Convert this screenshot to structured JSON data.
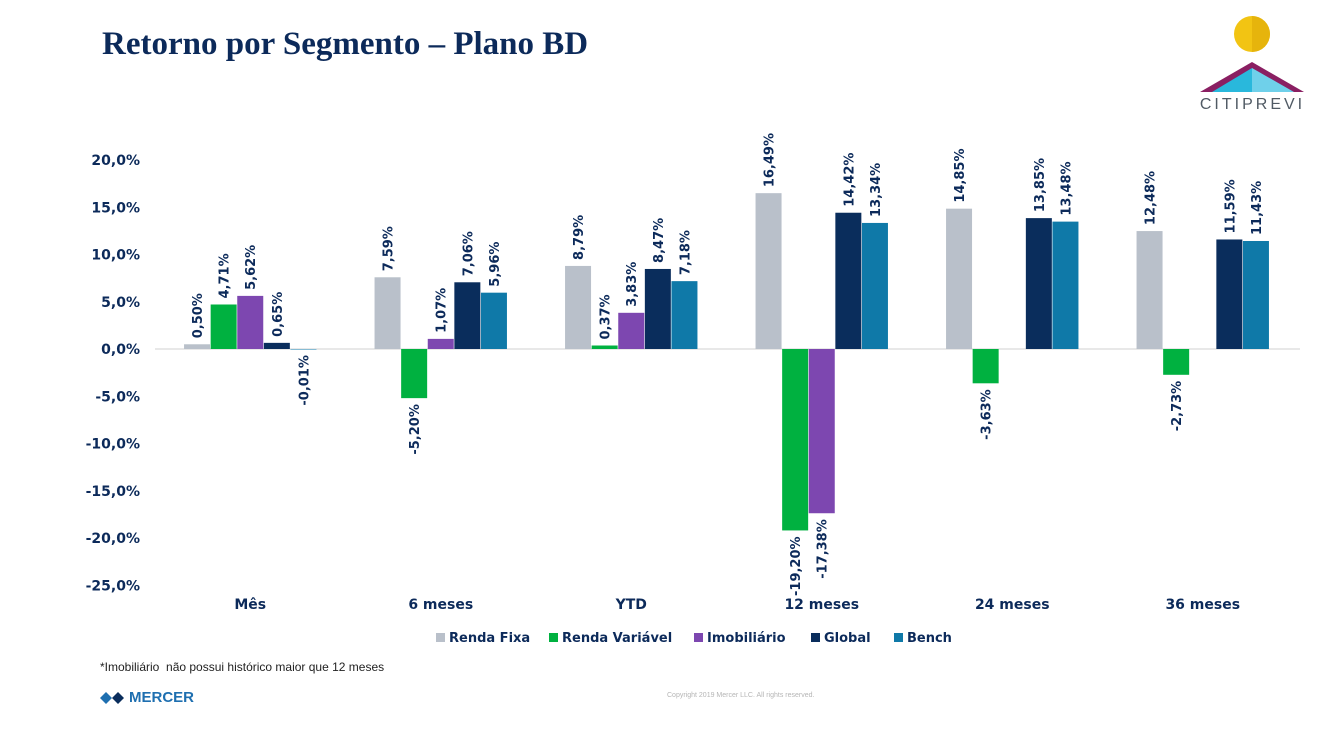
{
  "title": "Retorno por Segmento – Plano BD",
  "logo": {
    "text": "CITIPREVI"
  },
  "footnote": "*Imobiliário  não possui histórico maior que 12 meses",
  "brand": {
    "name": "MERCER"
  },
  "copyright": "Copyright 2019 Mercer LLC. All rights reserved.",
  "chart_data": {
    "type": "bar",
    "categories": [
      "Mês",
      "6 meses",
      "YTD",
      "12 meses",
      "24 meses",
      "36 meses"
    ],
    "series": [
      {
        "name": "Renda Fixa",
        "color": "#b9c0ca",
        "values": [
          0.5,
          7.59,
          8.79,
          16.49,
          14.85,
          12.48
        ],
        "labels": [
          "0,50%",
          "7,59%",
          "8,79%",
          "16,49%",
          "14,85%",
          "12,48%"
        ]
      },
      {
        "name": "Renda Variável",
        "color": "#00b140",
        "values": [
          4.71,
          -5.2,
          0.37,
          -19.2,
          -3.63,
          -2.73
        ],
        "labels": [
          "4,71%",
          "-5,20%",
          "0,37%",
          "-19,20%",
          "-3,63%",
          "-2,73%"
        ]
      },
      {
        "name": "Imobiliário",
        "color": "#7d47b0",
        "values": [
          5.62,
          1.07,
          3.83,
          -17.38,
          null,
          null
        ],
        "labels": [
          "5,62%",
          "1,07%",
          "3,83%",
          "-17,38%",
          "",
          ""
        ]
      },
      {
        "name": "Global",
        "color": "#0a2d5c",
        "values": [
          0.65,
          7.06,
          8.47,
          14.42,
          13.85,
          11.59
        ],
        "labels": [
          "0,65%",
          "7,06%",
          "8,47%",
          "14,42%",
          "13,85%",
          "11,59%"
        ]
      },
      {
        "name": "Bench",
        "color": "#0f79a8",
        "values": [
          -0.01,
          5.96,
          7.18,
          13.34,
          13.48,
          11.43
        ],
        "labels": [
          "-0,01%",
          "5,96%",
          "7,18%",
          "13,34%",
          "13,48%",
          "11,43%"
        ]
      }
    ],
    "yticks": [
      20,
      15,
      10,
      5,
      0,
      -5,
      -10,
      -15,
      -20,
      -25
    ],
    "ytick_labels": [
      "20,0%",
      "15,0%",
      "10,0%",
      "5,0%",
      "0,0%",
      "-5,0%",
      "-10,0%",
      "-15,0%",
      "-20,0%",
      "-25,0%"
    ],
    "ylim": [
      -25,
      20
    ],
    "legend_position": "bottom",
    "grid": false
  }
}
